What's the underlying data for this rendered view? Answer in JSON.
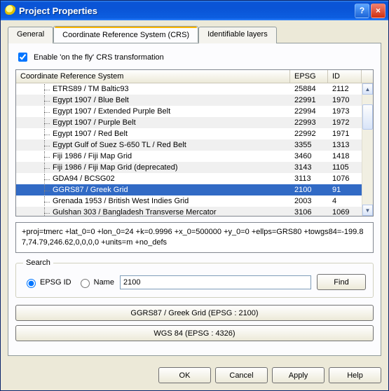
{
  "window": {
    "title": "Project Properties"
  },
  "tabs": {
    "general": "General",
    "crs": "Coordinate Reference System (CRS)",
    "layers": "Identifiable layers",
    "active": "crs"
  },
  "checkbox": {
    "label": "Enable 'on the fly' CRS transformation",
    "checked": true
  },
  "table": {
    "headers": {
      "crs": "Coordinate Reference System",
      "epsg": "EPSG",
      "id": "ID"
    },
    "selectedIndex": 9,
    "rows": [
      {
        "crs": "ETRS89 / TM Baltic93",
        "epsg": "25884",
        "id": "2112"
      },
      {
        "crs": "Egypt 1907 / Blue Belt",
        "epsg": "22991",
        "id": "1970"
      },
      {
        "crs": "Egypt 1907 / Extended Purple Belt",
        "epsg": "22994",
        "id": "1973"
      },
      {
        "crs": "Egypt 1907 / Purple Belt",
        "epsg": "22993",
        "id": "1972"
      },
      {
        "crs": "Egypt 1907 / Red Belt",
        "epsg": "22992",
        "id": "1971"
      },
      {
        "crs": "Egypt Gulf of Suez S-650 TL / Red Belt",
        "epsg": "3355",
        "id": "1313"
      },
      {
        "crs": "Fiji 1986 / Fiji Map Grid",
        "epsg": "3460",
        "id": "1418"
      },
      {
        "crs": "Fiji 1986 / Fiji Map Grid (deprecated)",
        "epsg": "3143",
        "id": "1105"
      },
      {
        "crs": "GDA94 / BCSG02",
        "epsg": "3113",
        "id": "1076"
      },
      {
        "crs": "GGRS87 / Greek Grid",
        "epsg": "2100",
        "id": "91"
      },
      {
        "crs": "Grenada 1953 / British West Indies Grid",
        "epsg": "2003",
        "id": "4"
      },
      {
        "crs": "Gulshan 303 / Bangladesh Transverse Mercator",
        "epsg": "3106",
        "id": "1069"
      }
    ]
  },
  "proj4": "+proj=tmerc +lat_0=0 +lon_0=24 +k=0.9996 +x_0=500000 +y_0=0 +ellps=GRS80 +towgs84=-199.87,74.79,246.62,0,0,0,0 +units=m +no_defs",
  "search": {
    "legend": "Search",
    "epsg_label": "EPSG ID",
    "name_label": "Name",
    "value": "2100",
    "find": "Find",
    "selected": "epsg"
  },
  "selection_buttons": {
    "primary": "GGRS87 / Greek Grid (EPSG : 2100)",
    "secondary": "WGS 84 (EPSG : 4326)"
  },
  "bottom": {
    "ok": "OK",
    "cancel": "Cancel",
    "apply": "Apply",
    "help": "Help"
  },
  "colors": {
    "selection_bg": "#316ac5",
    "stripe_bg": "#f0f0f0"
  }
}
